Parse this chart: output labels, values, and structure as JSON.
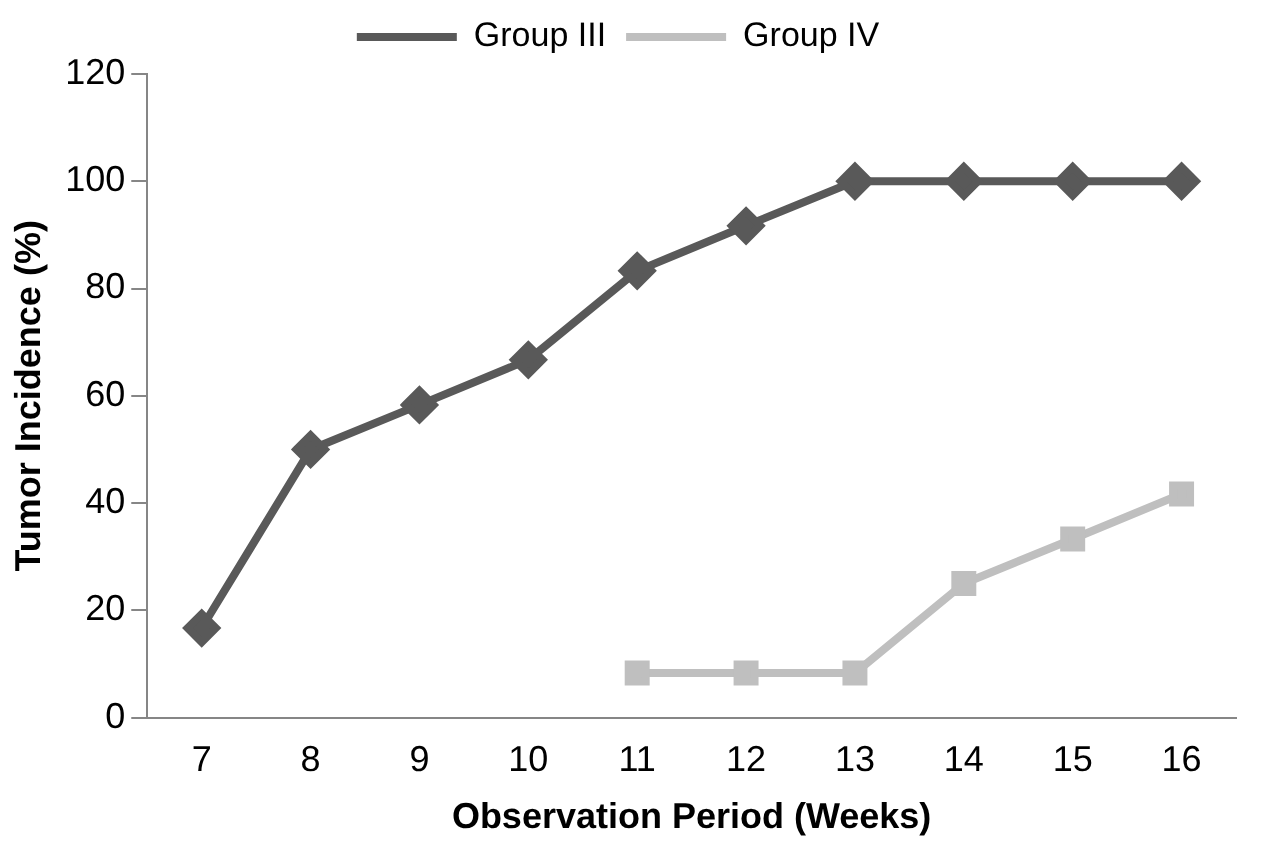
{
  "chart_data": {
    "type": "line",
    "xlabel": "Observation Period (Weeks)",
    "ylabel": "Tumor Incidence (%)",
    "categories": [
      "7",
      "8",
      "9",
      "10",
      "11",
      "12",
      "13",
      "14",
      "15",
      "16"
    ],
    "series": [
      {
        "name": "Group III",
        "color": "#595959",
        "marker": "diamond",
        "values": [
          16.7,
          50,
          58.3,
          66.7,
          83.3,
          91.7,
          100,
          100,
          100,
          100
        ]
      },
      {
        "name": "Group IV",
        "color": "#bfbfbf",
        "marker": "square",
        "values": [
          null,
          null,
          null,
          null,
          8.3,
          8.3,
          8.3,
          25,
          33.3,
          41.7
        ]
      }
    ],
    "ylim": [
      0,
      120
    ],
    "yticks": [
      0,
      20,
      40,
      60,
      80,
      100,
      120
    ],
    "grid": false,
    "legend": "top",
    "line_style": "solid"
  }
}
